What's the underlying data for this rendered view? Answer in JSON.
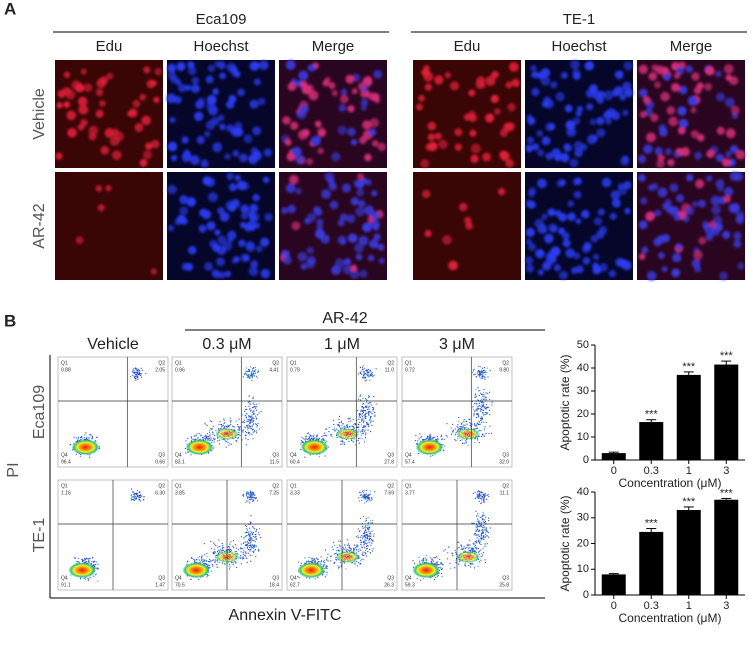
{
  "panel_a": {
    "label": "A",
    "cell_lines": [
      "Eca109",
      "TE-1"
    ],
    "channels": [
      "Edu",
      "Hoechst",
      "Merge"
    ],
    "rows": [
      "Vehicle",
      "AR-42"
    ]
  },
  "panel_b": {
    "label": "B",
    "treatment": "AR-42",
    "columns": [
      "Vehicle",
      "0.3 μM",
      "1 μM",
      "3 μM"
    ],
    "rows": [
      "Eca109",
      "TE-1"
    ],
    "y_axis": "PI",
    "x_axis": "Annexin V-FITC",
    "quadrant_names": [
      "Q1",
      "Q2",
      "Q3",
      "Q4"
    ],
    "plots": [
      [
        [
          "0.88",
          "2.05",
          "0.66",
          "96.4"
        ],
        [
          "0.96",
          "4.41",
          "11.5",
          "83.1"
        ],
        [
          "0.79",
          "11.0",
          "27.8",
          "60.4"
        ],
        [
          "0.72",
          "9.80",
          "32.0",
          "57.4"
        ]
      ],
      [
        [
          "1.16",
          "6.30",
          "1.47",
          "91.1"
        ],
        [
          "3.85",
          "7.25",
          "18.4",
          "70.5"
        ],
        [
          "3.33",
          "7.69",
          "26.3",
          "62.7"
        ],
        [
          "3.77",
          "11.1",
          "25.8",
          "59.3"
        ]
      ]
    ]
  },
  "chart_data": [
    {
      "type": "bar",
      "ylabel": "Apoptotic rate (%)",
      "xlabel": "Concentration (μM)",
      "categories": [
        "0",
        "0.3",
        "1",
        "3"
      ],
      "values": [
        3,
        16.5,
        37,
        41.5
      ],
      "errors": [
        0.4,
        1,
        1.3,
        1.5
      ],
      "significance": [
        null,
        "***",
        "***",
        "***"
      ],
      "color": "#000000",
      "ylim": [
        0,
        50
      ],
      "yticks": [
        0,
        10,
        20,
        30,
        40,
        50
      ]
    },
    {
      "type": "bar",
      "ylabel": "Apoptotic rate (%)",
      "xlabel": "Concentration (μM)",
      "categories": [
        "0",
        "0.3",
        "1",
        "3"
      ],
      "values": [
        8,
        24.5,
        33,
        37
      ],
      "errors": [
        0.3,
        1.3,
        1.2,
        0.5
      ],
      "significance": [
        null,
        "***",
        "***",
        "***"
      ],
      "color": "#000000",
      "ylim": [
        0,
        40
      ],
      "yticks": [
        0,
        10,
        20,
        30,
        40
      ]
    }
  ]
}
